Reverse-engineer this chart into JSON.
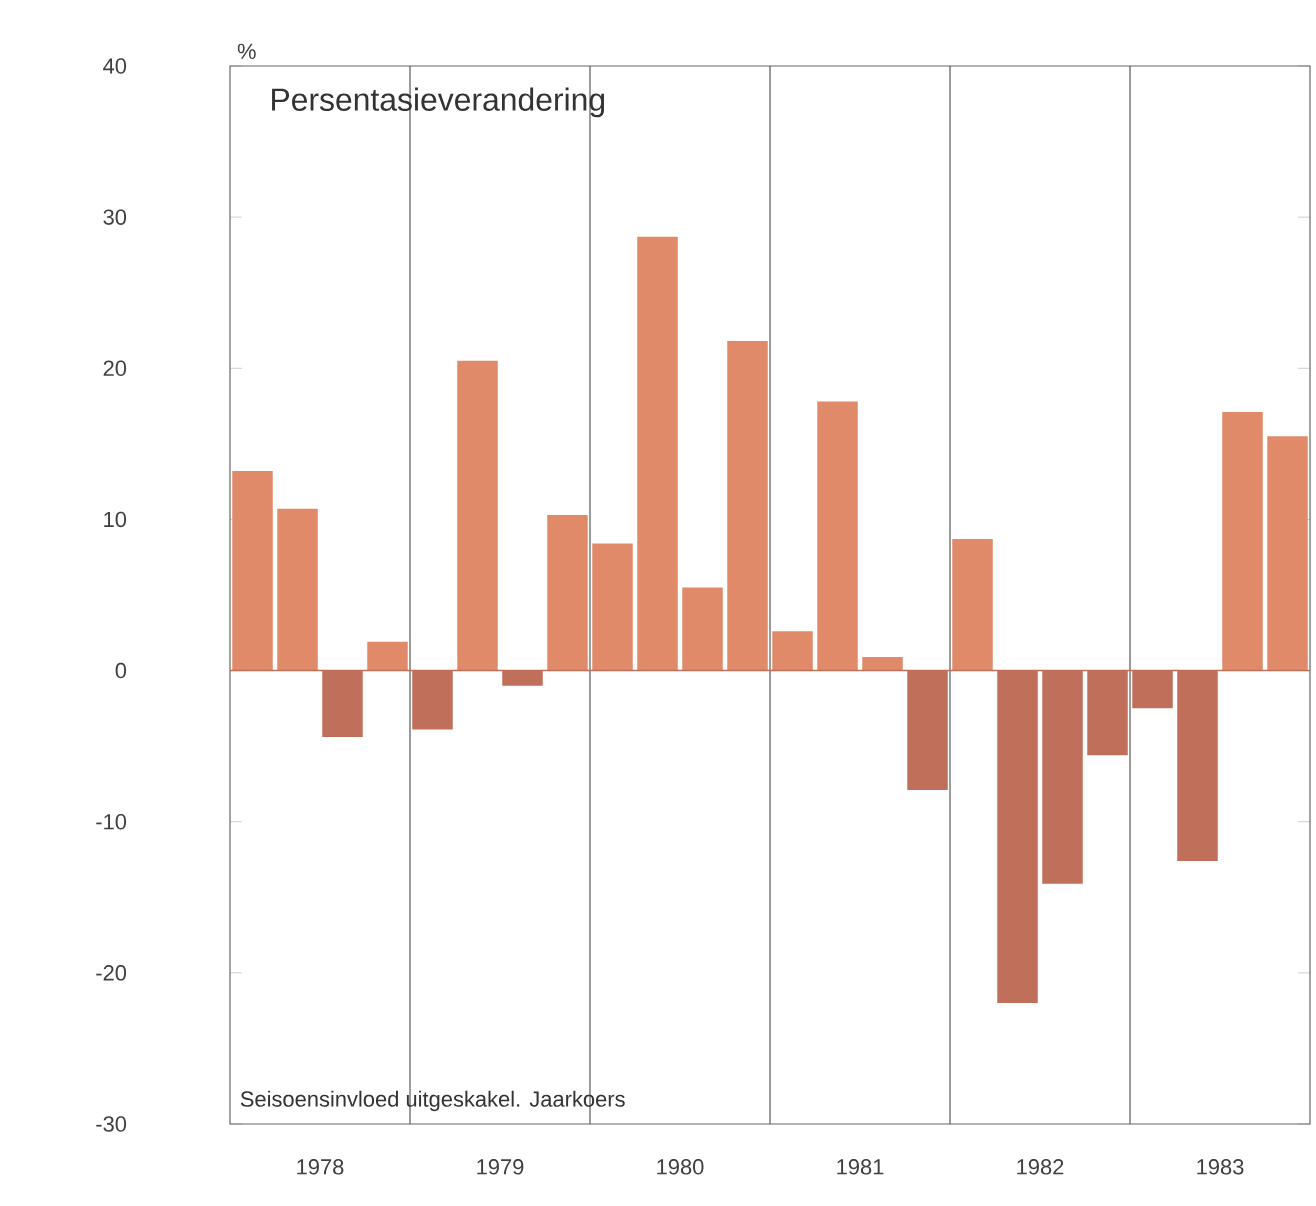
{
  "chart_data": {
    "type": "bar",
    "title": "Persentasieverandering",
    "ylabel": "%",
    "annotations": [
      "Seisoensinvloed uitgeskakel. Jaarkoers"
    ],
    "x": [
      1978.125,
      1978.375,
      1978.625,
      1978.875,
      1979.125,
      1979.375,
      1979.625,
      1979.875,
      1980.125,
      1980.375,
      1980.625,
      1980.875,
      1981.125,
      1981.375,
      1981.625,
      1981.875,
      1982.125,
      1982.375,
      1982.625,
      1982.875,
      1983.125,
      1983.375,
      1983.625,
      1983.875
    ],
    "values": [
      13.2,
      10.7,
      -4.4,
      1.9,
      -3.9,
      20.5,
      -1.0,
      10.3,
      8.4,
      28.7,
      5.5,
      21.8,
      2.6,
      17.8,
      0.9,
      -7.9,
      8.7,
      -22.0,
      -14.1,
      -5.6,
      -2.5,
      -12.6,
      17.1,
      15.5
    ],
    "colors": [
      "#e08a6a",
      "#e08a6a",
      "#c0705a",
      "#e08a6a",
      "#c0705a",
      "#e08a6a",
      "#c0705a",
      "#e08a6a",
      "#e08a6a",
      "#e08a6a",
      "#e08a6a",
      "#e08a6a",
      "#e08a6a",
      "#e08a6a",
      "#e08a6a",
      "#c0705a",
      "#e08a6a",
      "#c0705a",
      "#c0705a",
      "#c0705a",
      "#c0705a",
      "#c0705a",
      "#e08a6a",
      "#e08a6a"
    ],
    "xlim": [
      1978,
      1984
    ],
    "ylim": [
      -30,
      40
    ],
    "xticks": [
      {
        "value": 1978.5,
        "label": "1978"
      },
      {
        "value": 1979.5,
        "label": "1979"
      },
      {
        "value": 1980.5,
        "label": "1980"
      },
      {
        "value": 1981.5,
        "label": "1981"
      },
      {
        "value": 1982.5,
        "label": "1982"
      },
      {
        "value": 1983.5,
        "label": "1983"
      }
    ],
    "yticks": [
      -30,
      -20,
      -10,
      0,
      10,
      20,
      30,
      40
    ],
    "ref_lines": [
      {
        "axis": "x",
        "value": 1979
      },
      {
        "axis": "x",
        "value": 1980
      },
      {
        "axis": "x",
        "value": 1981
      },
      {
        "axis": "x",
        "value": 1982
      },
      {
        "axis": "x",
        "value": 1983
      },
      {
        "axis": "y",
        "value": 0,
        "color": "#c0705a"
      }
    ]
  }
}
